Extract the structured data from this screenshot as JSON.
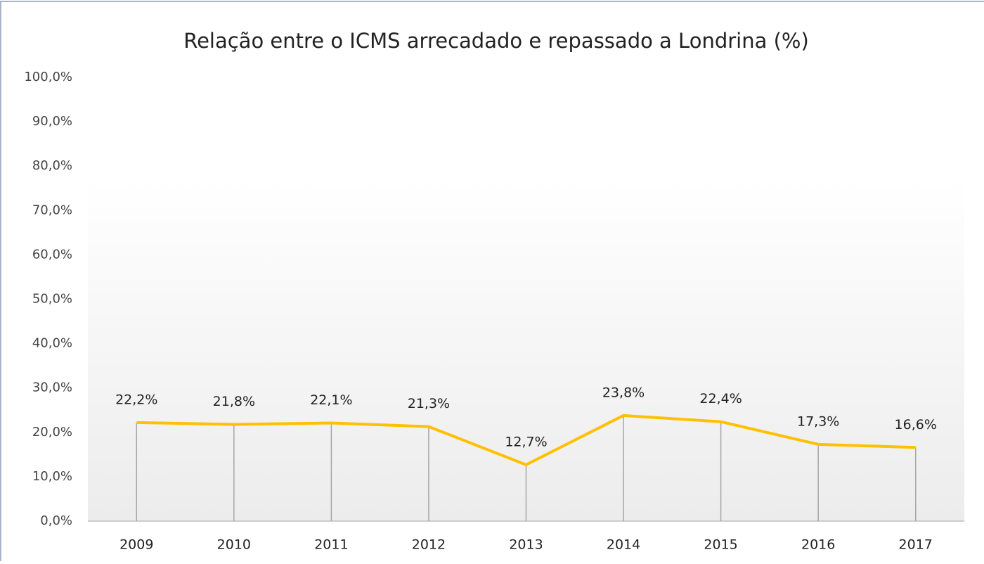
{
  "chart_data": {
    "type": "line",
    "title": "Relação entre o ICMS arrecadado e repassado a Londrina (%)",
    "categories": [
      "2009",
      "2010",
      "2011",
      "2012",
      "2013",
      "2014",
      "2015",
      "2016",
      "2017"
    ],
    "values": [
      22.2,
      21.8,
      22.1,
      21.3,
      12.7,
      23.8,
      22.4,
      17.3,
      16.6
    ],
    "value_labels": [
      "22,2%",
      "21,8%",
      "22,1%",
      "21,3%",
      "12,7%",
      "23,8%",
      "22,4%",
      "17,3%",
      "16,6%"
    ],
    "color": "#FFC000",
    "drop_lines": true,
    "ylim": [
      0,
      100
    ],
    "yticks": [
      {
        "value": 0,
        "label": "0,0%"
      },
      {
        "value": 10,
        "label": "10,0%"
      },
      {
        "value": 20,
        "label": "20,0%"
      },
      {
        "value": 30,
        "label": "30,0%"
      },
      {
        "value": 40,
        "label": "40,0%"
      },
      {
        "value": 50,
        "label": "50,0%"
      },
      {
        "value": 60,
        "label": "60,0%"
      },
      {
        "value": 70,
        "label": "70,0%"
      },
      {
        "value": 80,
        "label": "80,0%"
      },
      {
        "value": 90,
        "label": "90,0%"
      },
      {
        "value": 100,
        "label": "100,0%"
      }
    ],
    "grid": false
  }
}
